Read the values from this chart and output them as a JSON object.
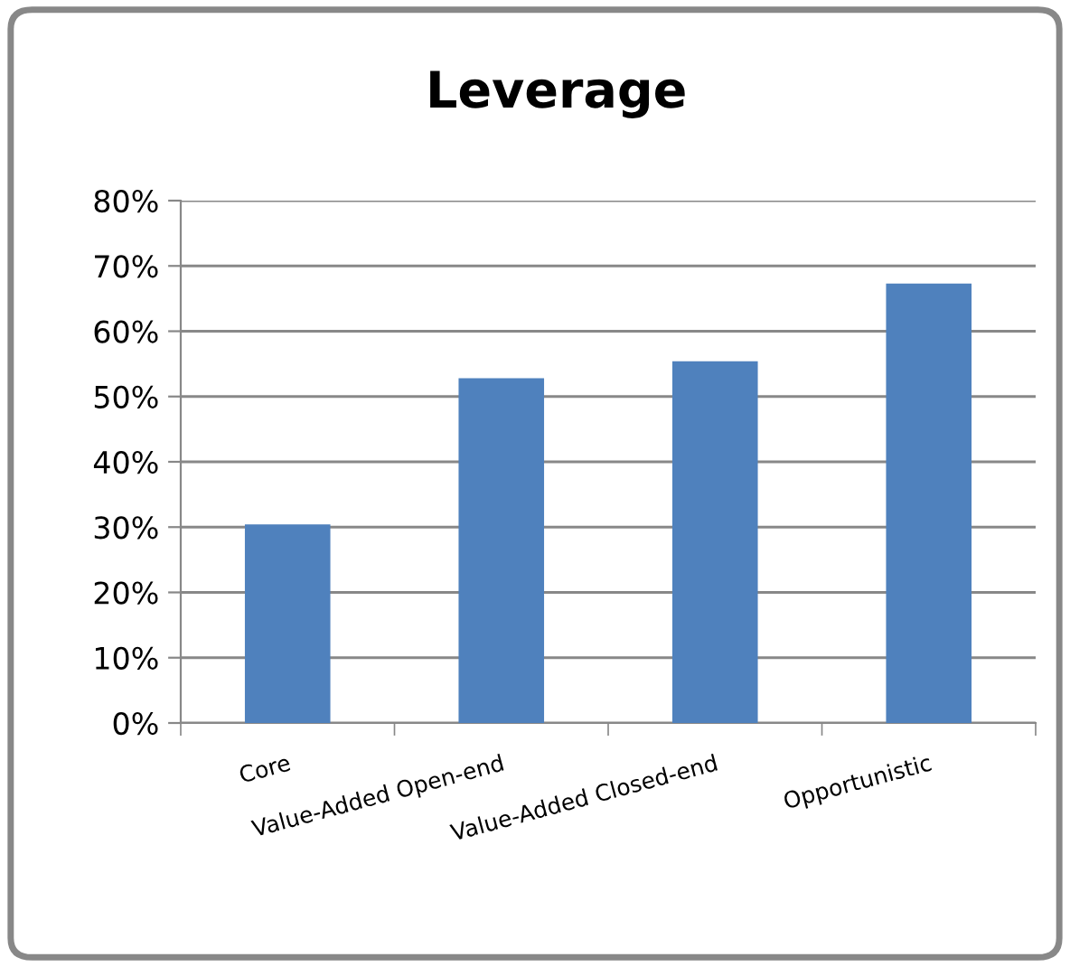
{
  "chart_data": {
    "type": "bar",
    "title": "Leverage",
    "categories": [
      "Core",
      "Value-Added Open-end",
      "Value-Added Closed-end",
      "Opportunistic"
    ],
    "values": [
      30.4,
      52.8,
      55.4,
      67.3
    ],
    "color": "#4f81bd",
    "ylim": [
      0,
      80
    ],
    "yticks": [
      {
        "value": 0,
        "label": "0%"
      },
      {
        "value": 10,
        "label": "10%"
      },
      {
        "value": 20,
        "label": "20%"
      },
      {
        "value": 30,
        "label": "30%"
      },
      {
        "value": 40,
        "label": "40%"
      },
      {
        "value": 50,
        "label": "50%"
      },
      {
        "value": 60,
        "label": "60%"
      },
      {
        "value": 70,
        "label": "70%"
      },
      {
        "value": 80,
        "label": "80%"
      }
    ],
    "grid": "y",
    "legend": false
  }
}
